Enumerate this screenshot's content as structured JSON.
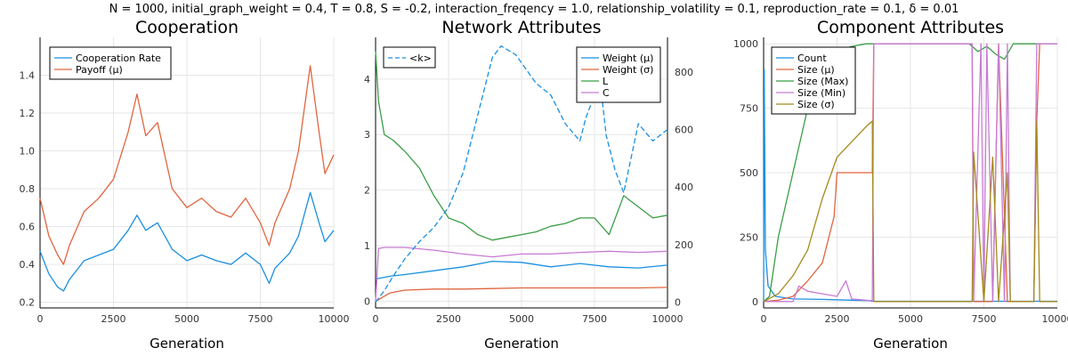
{
  "suptitle": "N = 1000, initial_graph_weight = 0.4, T = 0.8, S = -0.2, interaction_freqency = 1.0, relationship_volatility = 0.1, reproduction_rate = 0.1, δ = 0.01",
  "colors": {
    "blue": "#1a8fe0",
    "orange": "#e0653f",
    "green": "#3a9e45",
    "purple": "#c77ad4",
    "olive": "#a38a1a"
  },
  "chart_data": [
    {
      "type": "line",
      "title": "Cooperation",
      "xlabel": "Generation",
      "ylabel": "",
      "xlim": [
        0,
        10000
      ],
      "ylim": [
        0.17,
        1.6
      ],
      "xticks": [
        "0",
        "2500",
        "5000",
        "7500",
        "10000"
      ],
      "yticks": [
        "0.2",
        "0.4",
        "0.6",
        "0.8",
        "1.0",
        "1.2",
        "1.4"
      ],
      "legend": "top-left",
      "series": [
        {
          "name": "Cooperation Rate",
          "color": "#1a8fe0",
          "x": [
            0,
            300,
            600,
            800,
            1000,
            1500,
            2000,
            2500,
            3000,
            3300,
            3600,
            4000,
            4500,
            5000,
            5500,
            6000,
            6500,
            7000,
            7500,
            7800,
            8000,
            8500,
            8800,
            9200,
            9500,
            9700,
            10000
          ],
          "y": [
            0.47,
            0.35,
            0.28,
            0.26,
            0.32,
            0.42,
            0.45,
            0.48,
            0.58,
            0.66,
            0.58,
            0.62,
            0.48,
            0.42,
            0.45,
            0.42,
            0.4,
            0.46,
            0.4,
            0.3,
            0.38,
            0.46,
            0.55,
            0.78,
            0.62,
            0.52,
            0.58
          ]
        },
        {
          "name": "Payoff (μ)",
          "color": "#e0653f",
          "x": [
            0,
            300,
            600,
            800,
            1000,
            1500,
            2000,
            2500,
            3000,
            3300,
            3600,
            4000,
            4500,
            5000,
            5500,
            6000,
            6500,
            7000,
            7500,
            7800,
            8000,
            8500,
            8800,
            9200,
            9500,
            9700,
            10000
          ],
          "y": [
            0.75,
            0.55,
            0.45,
            0.4,
            0.5,
            0.68,
            0.75,
            0.85,
            1.1,
            1.3,
            1.08,
            1.15,
            0.8,
            0.7,
            0.75,
            0.68,
            0.65,
            0.75,
            0.62,
            0.5,
            0.62,
            0.8,
            1.0,
            1.45,
            1.1,
            0.88,
            0.98
          ]
        }
      ]
    },
    {
      "type": "line",
      "title": "Network Attributes",
      "xlabel": "Generation",
      "ylabel": "",
      "xlim": [
        0,
        10000
      ],
      "ylim": [
        -0.12,
        4.75
      ],
      "ylim_right": [
        -20,
        920
      ],
      "xticks": [
        "0",
        "2500",
        "5000",
        "7500",
        "10000"
      ],
      "yticks": [
        "0",
        "1",
        "2",
        "3",
        "4"
      ],
      "yticks_right": [
        "0",
        "200",
        "400",
        "600",
        "800"
      ],
      "legend": "top-right",
      "legend_right_axis": "top-left",
      "series": [
        {
          "name": "Weight (μ)",
          "color": "#1a8fe0",
          "axis": "left",
          "x": [
            0,
            500,
            1000,
            2000,
            3000,
            4000,
            5000,
            6000,
            7000,
            8000,
            9000,
            10000
          ],
          "y": [
            0.4,
            0.45,
            0.48,
            0.55,
            0.62,
            0.72,
            0.7,
            0.62,
            0.68,
            0.62,
            0.6,
            0.65
          ]
        },
        {
          "name": "Weight (σ)",
          "color": "#e0653f",
          "axis": "left",
          "x": [
            0,
            500,
            1000,
            2000,
            3000,
            4000,
            5000,
            6000,
            7000,
            8000,
            9000,
            10000
          ],
          "y": [
            0.0,
            0.15,
            0.2,
            0.22,
            0.22,
            0.23,
            0.24,
            0.24,
            0.24,
            0.24,
            0.24,
            0.25
          ]
        },
        {
          "name": "L",
          "color": "#3a9e45",
          "axis": "left",
          "x": [
            0,
            100,
            300,
            600,
            1000,
            1500,
            2000,
            2500,
            3000,
            3500,
            4000,
            4500,
            5000,
            5500,
            6000,
            6500,
            7000,
            7500,
            8000,
            8500,
            9000,
            9500,
            10000
          ],
          "y": [
            4.5,
            3.6,
            3.0,
            2.9,
            2.7,
            2.4,
            1.9,
            1.5,
            1.4,
            1.2,
            1.1,
            1.15,
            1.2,
            1.25,
            1.35,
            1.4,
            1.5,
            1.5,
            1.2,
            1.9,
            1.7,
            1.5,
            1.55
          ]
        },
        {
          "name": "C",
          "color": "#c77ad4",
          "axis": "left",
          "x": [
            0,
            100,
            300,
            1000,
            2000,
            3000,
            4000,
            5000,
            6000,
            7000,
            8000,
            9000,
            10000
          ],
          "y": [
            0.0,
            0.95,
            0.97,
            0.97,
            0.92,
            0.85,
            0.8,
            0.85,
            0.85,
            0.88,
            0.9,
            0.88,
            0.9
          ]
        },
        {
          "name": "<k>",
          "color": "#1a8fe0",
          "axis": "right",
          "dashed": true,
          "x": [
            0,
            300,
            600,
            1000,
            1500,
            2000,
            2500,
            3000,
            3500,
            4000,
            4300,
            4800,
            5500,
            6000,
            6500,
            7000,
            7200,
            7500,
            7700,
            7900,
            8200,
            8500,
            9000,
            9500,
            10000
          ],
          "y": [
            0,
            40,
            90,
            150,
            210,
            260,
            330,
            450,
            650,
            850,
            890,
            860,
            760,
            720,
            620,
            560,
            640,
            720,
            760,
            580,
            460,
            380,
            620,
            560,
            600
          ]
        }
      ]
    },
    {
      "type": "line",
      "title": "Component Attributes",
      "xlabel": "Generation",
      "ylabel": "",
      "xlim": [
        0,
        10000
      ],
      "ylim": [
        -25,
        1025
      ],
      "xticks": [
        "0",
        "2500",
        "5000",
        "7500",
        "10000"
      ],
      "yticks": [
        "0",
        "250",
        "500",
        "750",
        "1000"
      ],
      "legend": "top-left",
      "series": [
        {
          "name": "Count",
          "color": "#1a8fe0",
          "x": [
            0,
            20,
            60,
            150,
            400,
            1000,
            2000,
            3000,
            3700,
            3750,
            10000
          ],
          "y": [
            0,
            900,
            200,
            60,
            20,
            10,
            8,
            5,
            3,
            1,
            1
          ]
        },
        {
          "name": "Size (μ)",
          "color": "#e0653f",
          "x": [
            0,
            500,
            1000,
            1500,
            2000,
            2400,
            2500,
            3000,
            3500,
            3700,
            3750,
            7100,
            7150,
            7500,
            7800,
            8000,
            8300,
            8400,
            9200,
            9300,
            9400,
            10000
          ],
          "y": [
            0,
            5,
            20,
            80,
            150,
            330,
            500,
            500,
            500,
            500,
            1000,
            1000,
            0,
            0,
            0,
            1000,
            0,
            0,
            0,
            700,
            1000,
            1000
          ]
        },
        {
          "name": "Size (Max)",
          "color": "#3a9e45",
          "x": [
            0,
            200,
            500,
            800,
            1000,
            1500,
            2000,
            2500,
            3000,
            3500,
            3700,
            3750,
            5000,
            6000,
            7000,
            7300,
            7600,
            7900,
            8200,
            8500,
            9000,
            9200,
            10000
          ],
          "y": [
            0,
            20,
            250,
            400,
            500,
            750,
            850,
            970,
            990,
            1000,
            1000,
            1000,
            1000,
            1000,
            1000,
            970,
            990,
            960,
            940,
            1000,
            1000,
            1000,
            1000
          ]
        },
        {
          "name": "Size (Min)",
          "color": "#c77ad4",
          "x": [
            0,
            1000,
            1200,
            1500,
            2000,
            2500,
            2800,
            3000,
            3500,
            3700,
            3750,
            7100,
            7150,
            7400,
            7500,
            7600,
            7800,
            8000,
            8200,
            8300,
            8400,
            9200,
            9300,
            9400,
            10000
          ],
          "y": [
            0,
            0,
            60,
            40,
            30,
            20,
            80,
            10,
            5,
            0,
            1000,
            1000,
            0,
            1000,
            0,
            1000,
            0,
            1000,
            0,
            1000,
            0,
            0,
            1000,
            1000,
            1000
          ]
        },
        {
          "name": "Size (σ)",
          "color": "#a38a1a",
          "x": [
            0,
            500,
            1000,
            1500,
            2000,
            2500,
            3000,
            3500,
            3700,
            3750,
            7100,
            7150,
            7500,
            7800,
            8000,
            8300,
            8400,
            9200,
            9300,
            9400,
            10000
          ],
          "y": [
            0,
            30,
            100,
            200,
            400,
            560,
            620,
            680,
            700,
            0,
            0,
            580,
            0,
            560,
            0,
            500,
            0,
            0,
            700,
            0,
            0
          ]
        }
      ]
    }
  ]
}
